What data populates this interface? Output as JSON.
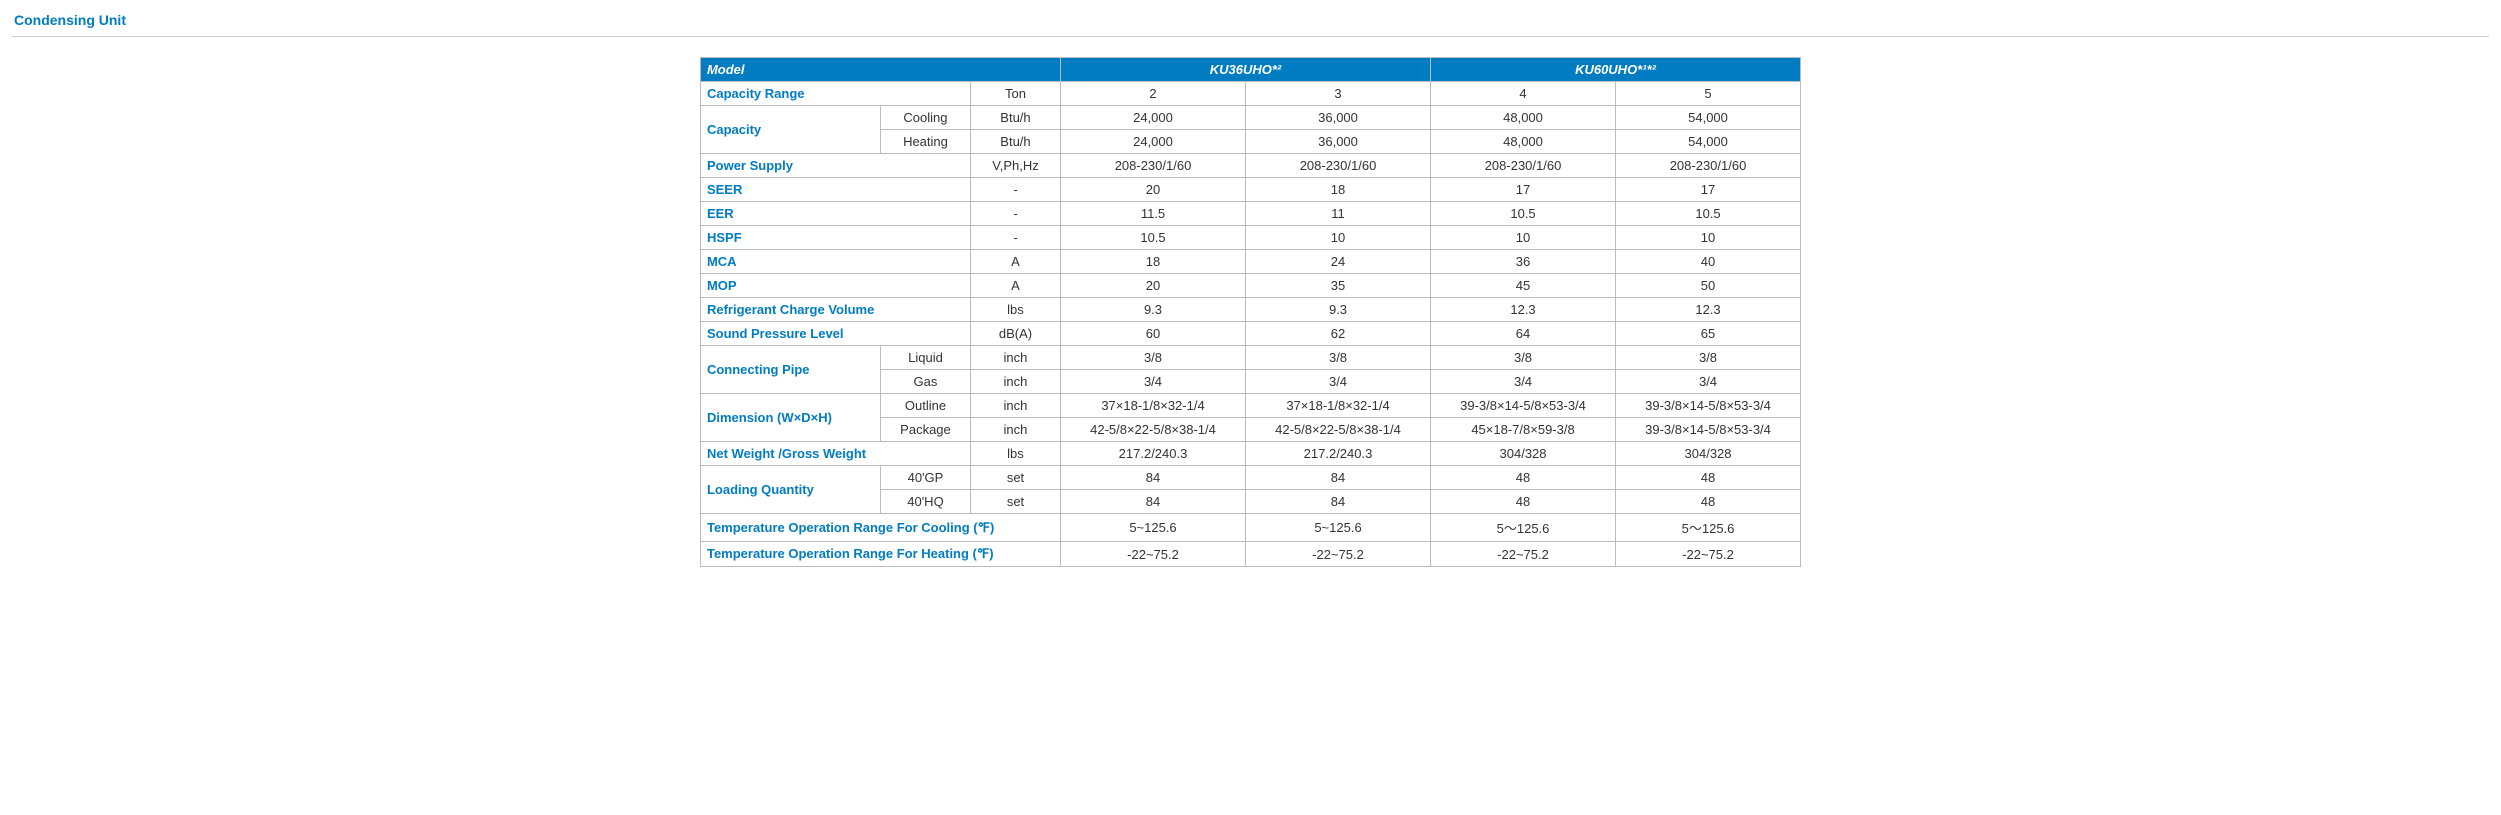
{
  "title": "Condensing Unit",
  "header": {
    "model_label": "Model",
    "models": [
      "KU36UHO*²",
      "KU60UHO*¹*²"
    ]
  },
  "colors": {
    "accent": "#007cc3",
    "border": "#bbbbbb",
    "text": "#333333",
    "header_bg": "#007cc3",
    "header_text": "#ffffff"
  },
  "rows": [
    {
      "label": "Capacity Range",
      "sub": "",
      "colspan_label": 2,
      "unit": "Ton",
      "values": [
        "2",
        "3",
        "4",
        "5"
      ]
    },
    {
      "label": "Capacity",
      "sub": "Cooling",
      "rowspan_label": 2,
      "unit": "Btu/h",
      "values": [
        "24,000",
        "36,000",
        "48,000",
        "54,000"
      ]
    },
    {
      "label": "",
      "sub": "Heating",
      "unit": "Btu/h",
      "values": [
        "24,000",
        "36,000",
        "48,000",
        "54,000"
      ]
    },
    {
      "label": "Power Supply",
      "sub": "",
      "colspan_label": 2,
      "unit": "V,Ph,Hz",
      "values": [
        "208-230/1/60",
        "208-230/1/60",
        "208-230/1/60",
        "208-230/1/60"
      ]
    },
    {
      "label": "SEER",
      "sub": "",
      "colspan_label": 2,
      "unit": "-",
      "values": [
        "20",
        "18",
        "17",
        "17"
      ]
    },
    {
      "label": "EER",
      "sub": "",
      "colspan_label": 2,
      "unit": "-",
      "values": [
        "11.5",
        "11",
        "10.5",
        "10.5"
      ]
    },
    {
      "label": "HSPF",
      "sub": "",
      "colspan_label": 2,
      "unit": "-",
      "values": [
        "10.5",
        "10",
        "10",
        "10"
      ]
    },
    {
      "label": "MCA",
      "sub": "",
      "colspan_label": 2,
      "unit": "A",
      "values": [
        "18",
        "24",
        "36",
        "40"
      ]
    },
    {
      "label": "MOP",
      "sub": "",
      "colspan_label": 2,
      "unit": "A",
      "values": [
        "20",
        "35",
        "45",
        "50"
      ]
    },
    {
      "label": "Refrigerant Charge Volume",
      "sub": "",
      "colspan_label": 2,
      "unit": "lbs",
      "values": [
        "9.3",
        "9.3",
        "12.3",
        "12.3"
      ]
    },
    {
      "label": "Sound Pressure Level",
      "sub": "",
      "colspan_label": 2,
      "unit": "dB(A)",
      "values": [
        "60",
        "62",
        "64",
        "65"
      ]
    },
    {
      "label": "Connecting Pipe",
      "sub": "Liquid",
      "rowspan_label": 2,
      "unit": "inch",
      "values": [
        "3/8",
        "3/8",
        "3/8",
        "3/8"
      ]
    },
    {
      "label": "",
      "sub": "Gas",
      "unit": "inch",
      "values": [
        "3/4",
        "3/4",
        "3/4",
        "3/4"
      ]
    },
    {
      "label": "Dimension (W×D×H)",
      "sub": "Outline",
      "rowspan_label": 2,
      "unit": "inch",
      "values": [
        "37×18-1/8×32-1/4",
        "37×18-1/8×32-1/4",
        "39-3/8×14-5/8×53-3/4",
        "39-3/8×14-5/8×53-3/4"
      ]
    },
    {
      "label": "",
      "sub": "Package",
      "unit": "inch",
      "values": [
        "42-5/8×22-5/8×38-1/4",
        "42-5/8×22-5/8×38-1/4",
        "45×18-7/8×59-3/8",
        "39-3/8×14-5/8×53-3/4"
      ]
    },
    {
      "label": "Net Weight /Gross Weight",
      "sub": "",
      "colspan_label": 2,
      "unit": "lbs",
      "values": [
        "217.2/240.3",
        "217.2/240.3",
        "304/328",
        "304/328"
      ]
    },
    {
      "label": "Loading Quantity",
      "sub": "40'GP",
      "rowspan_label": 2,
      "unit": "set",
      "values": [
        "84",
        "84",
        "48",
        "48"
      ]
    },
    {
      "label": "",
      "sub": "40'HQ",
      "unit": "set",
      "values": [
        "84",
        "84",
        "48",
        "48"
      ]
    },
    {
      "label": "Temperature Operation Range For Cooling (℉)",
      "sub": "",
      "colspan_label": 3,
      "unit": "",
      "values": [
        "5~125.6",
        "5~125.6",
        "5～125.6",
        "5～125.6"
      ]
    },
    {
      "label": "Temperature Operation Range For Heating (℉)",
      "sub": "",
      "colspan_label": 3,
      "unit": "",
      "values": [
        "-22~75.2",
        "-22~75.2",
        "-22~75.2",
        "-22~75.2"
      ]
    }
  ]
}
